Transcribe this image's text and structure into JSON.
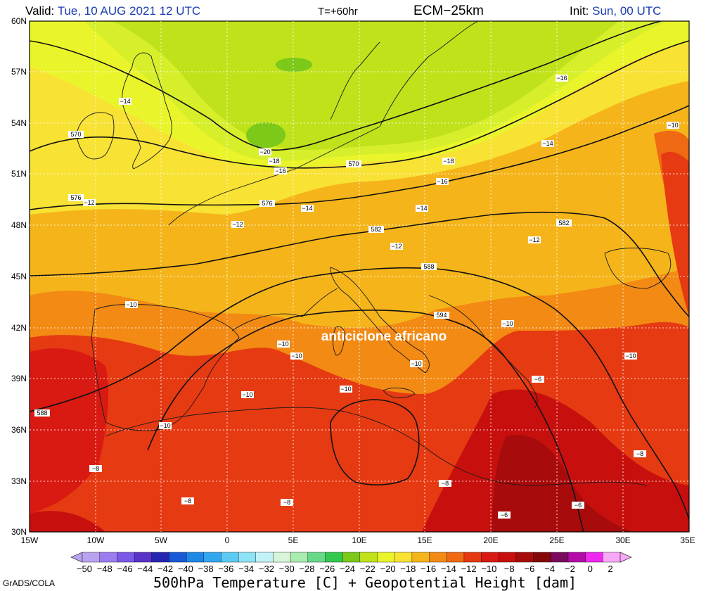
{
  "header": {
    "valid_label": "Valid:",
    "valid_value": "Tue, 10 AUG 2021  12 UTC",
    "forecast_step": "T=+60hr",
    "model": "ECM−25km",
    "init_label": "Init:",
    "init_value": "Sun, 00 UTC"
  },
  "map": {
    "lat_labels": [
      "60N",
      "57N",
      "54N",
      "51N",
      "48N",
      "45N",
      "42N",
      "39N",
      "36N",
      "33N",
      "30N"
    ],
    "lon_labels": [
      "15W",
      "10W",
      "5W",
      "0",
      "5E",
      "10E",
      "15E",
      "20E",
      "25E",
      "30E",
      "35E"
    ],
    "annotation": "anticiclone africano",
    "height_contours": [
      "570",
      "576",
      "582",
      "588",
      "594"
    ],
    "temp_labels": [
      "−14",
      "−16",
      "−10",
      "−20",
      "−18",
      "−14",
      "−18",
      "−16",
      "−12",
      "−16",
      "−12",
      "−14",
      "−14",
      "−12",
      "−12",
      "−10",
      "−10",
      "−10",
      "−10",
      "−10",
      "−10",
      "−10",
      "−10",
      "−10",
      "−8",
      "−8",
      "−8",
      "−8",
      "−6",
      "−6",
      "−6",
      "−8"
    ],
    "contour_labels_misc": [
      "570",
      "576",
      "582",
      "588",
      "594",
      "588",
      "588",
      "582",
      "570",
      "576"
    ]
  },
  "colorbar": {
    "ticks": [
      "−50",
      "−48",
      "−46",
      "−44",
      "−42",
      "−40",
      "−38",
      "−36",
      "−34",
      "−32",
      "−30",
      "−28",
      "−26",
      "−24",
      "−22",
      "−20",
      "−18",
      "−16",
      "−14",
      "−12",
      "−10",
      "−8",
      "−6",
      "−4",
      "−2",
      "0",
      "2"
    ],
    "colors": [
      "#b9a3f0",
      "#9b7df0",
      "#7a59e6",
      "#5a33c8",
      "#2626b3",
      "#1a5ad6",
      "#1f88e6",
      "#33a6f0",
      "#5ccaf2",
      "#8ee2f5",
      "#c2f2f7",
      "#d9f5d9",
      "#a8ecb0",
      "#66d98a",
      "#33c94d",
      "#7cc91a",
      "#bfe21a",
      "#e9f52a",
      "#f8e234",
      "#f5b51a",
      "#f28a14",
      "#ef6a12",
      "#e63a12",
      "#d91a12",
      "#c7100e",
      "#a80b0c",
      "#840808",
      "#7a0a5c",
      "#b40aa8",
      "#ef28ef",
      "#f7a8f7"
    ]
  },
  "footer": {
    "credit": "GrADS/COLA",
    "title": "500hPa Temperature [C] + Geopotential Height [dam]"
  }
}
